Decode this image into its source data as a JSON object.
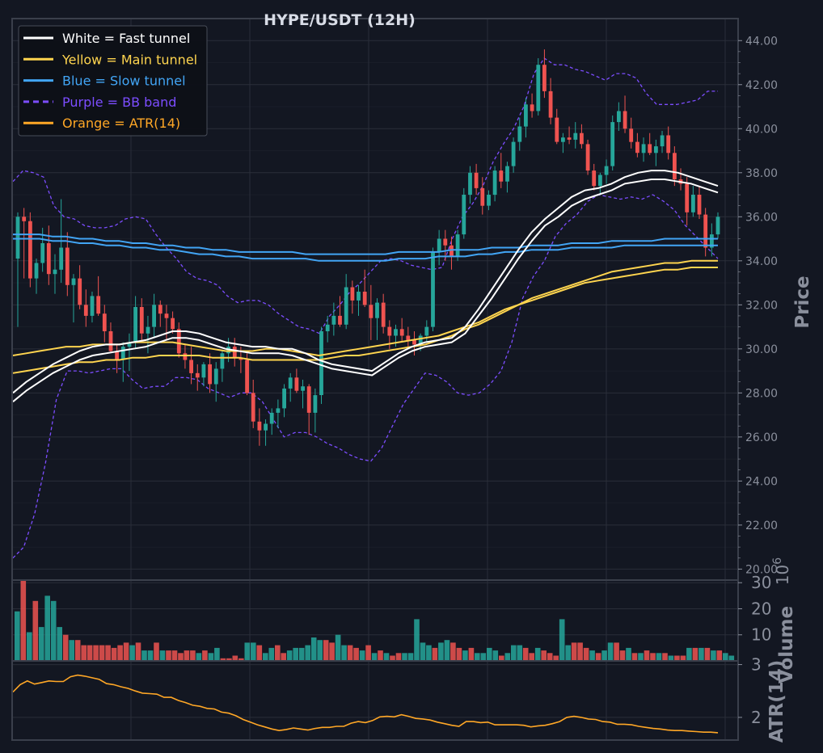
{
  "chart_data": {
    "type": "candlestick",
    "title": "HYPE/USDT (12H)",
    "colors": {
      "background": "#131722",
      "up": "#26a69a",
      "down": "#ef5350",
      "fast": "#ffffff",
      "main": "#ffd54f",
      "slow": "#42a5f5",
      "bb": "#7c4dff",
      "atr": "#ffa726",
      "grid": "#2a2e39",
      "text": "#8a8f9c"
    },
    "legend": {
      "position": "top-left",
      "entries": [
        {
          "label": "White = Fast tunnel",
          "color": "#ffffff",
          "dash": false
        },
        {
          "label": "Yellow = Main tunnel",
          "color": "#ffd54f",
          "dash": false
        },
        {
          "label": "Blue = Slow tunnel",
          "color": "#42a5f5",
          "dash": false
        },
        {
          "label": "Purple = BB band",
          "color": "#7c4dff",
          "dash": true
        },
        {
          "label": "Orange = ATR(14)",
          "color": "#ffa726",
          "dash": false
        }
      ]
    },
    "price_panel": {
      "ylabel": "Price",
      "ylim": [
        19.5,
        45.0
      ],
      "yticks": [
        "20.00",
        "22.00",
        "24.00",
        "26.00",
        "28.00",
        "30.00",
        "32.00",
        "34.00",
        "36.00",
        "38.00",
        "40.00",
        "42.00",
        "44.00"
      ],
      "grid": true
    },
    "volume_panel": {
      "ylabel": "Volume",
      "scale_label": "1e6",
      "ylim": [
        0,
        31
      ],
      "yticks": [
        "10",
        "20",
        "30"
      ],
      "grid": true
    },
    "atr_panel": {
      "ylabel": "ATR(14)",
      "ylim": [
        1.57,
        3.07
      ],
      "yticks": [
        "2",
        "3"
      ],
      "grid": true
    },
    "candles": [
      [
        34.1,
        36.2,
        31.0,
        36.0
      ],
      [
        36.0,
        36.4,
        33.2,
        35.8
      ],
      [
        35.8,
        36.2,
        32.8,
        33.2
      ],
      [
        33.2,
        34.1,
        32.5,
        33.9
      ],
      [
        33.9,
        35.5,
        33.5,
        34.8
      ],
      [
        34.8,
        35.6,
        32.9,
        33.4
      ],
      [
        33.4,
        34.3,
        32.5,
        33.6
      ],
      [
        33.6,
        36.8,
        33.0,
        34.6
      ],
      [
        34.6,
        35.3,
        32.4,
        32.9
      ],
      [
        32.9,
        33.4,
        31.2,
        33.2
      ],
      [
        33.2,
        33.8,
        31.8,
        32.0
      ],
      [
        32.0,
        32.7,
        31.0,
        31.5
      ],
      [
        31.5,
        32.6,
        31.2,
        32.4
      ],
      [
        32.4,
        33.3,
        31.5,
        31.6
      ],
      [
        31.6,
        32.0,
        30.3,
        30.8
      ],
      [
        30.8,
        31.2,
        29.8,
        29.9
      ],
      [
        29.9,
        30.2,
        28.9,
        29.5
      ],
      [
        29.5,
        30.3,
        28.5,
        30.1
      ],
      [
        30.1,
        30.7,
        29.0,
        30.3
      ],
      [
        30.3,
        32.4,
        30.0,
        31.9
      ],
      [
        31.9,
        32.3,
        30.3,
        30.7
      ],
      [
        30.7,
        31.5,
        29.8,
        31.0
      ],
      [
        31.0,
        32.5,
        30.5,
        32.0
      ],
      [
        32.0,
        32.2,
        31.0,
        31.6
      ],
      [
        31.6,
        32.0,
        30.4,
        31.4
      ],
      [
        31.4,
        31.7,
        30.7,
        30.9
      ],
      [
        30.9,
        31.2,
        29.6,
        29.8
      ],
      [
        29.8,
        30.2,
        29.1,
        29.5
      ],
      [
        29.5,
        30.1,
        28.4,
        28.9
      ],
      [
        28.9,
        29.3,
        28.1,
        28.7
      ],
      [
        28.7,
        29.4,
        28.3,
        29.3
      ],
      [
        29.3,
        29.8,
        28.0,
        28.4
      ],
      [
        28.4,
        29.4,
        27.6,
        29.1
      ],
      [
        29.1,
        29.9,
        28.5,
        29.8
      ],
      [
        29.8,
        30.5,
        29.4,
        30.1
      ],
      [
        30.1,
        30.5,
        29.2,
        29.6
      ],
      [
        29.6,
        30.1,
        28.9,
        29.5
      ],
      [
        29.5,
        29.8,
        27.9,
        28.0
      ],
      [
        28.0,
        28.6,
        26.4,
        26.7
      ],
      [
        26.7,
        27.3,
        25.6,
        26.3
      ],
      [
        26.3,
        26.8,
        25.6,
        26.6
      ],
      [
        26.6,
        27.3,
        26.1,
        27.1
      ],
      [
        27.1,
        27.7,
        26.4,
        27.3
      ],
      [
        27.3,
        28.4,
        26.9,
        28.2
      ],
      [
        28.2,
        28.9,
        27.6,
        28.7
      ],
      [
        28.7,
        29.1,
        28.0,
        28.1
      ],
      [
        28.1,
        28.6,
        27.3,
        28.3
      ],
      [
        28.3,
        28.4,
        26.1,
        27.1
      ],
      [
        27.1,
        28.2,
        26.2,
        27.9
      ],
      [
        27.9,
        31.0,
        27.5,
        30.8
      ],
      [
        30.8,
        31.5,
        30.3,
        31.1
      ],
      [
        31.1,
        32.1,
        30.6,
        31.5
      ],
      [
        31.5,
        32.4,
        31.0,
        31.1
      ],
      [
        31.1,
        33.4,
        30.9,
        32.8
      ],
      [
        32.8,
        33.1,
        31.6,
        32.2
      ],
      [
        32.2,
        32.9,
        31.5,
        32.6
      ],
      [
        32.6,
        33.6,
        31.9,
        32.0
      ],
      [
        32.0,
        32.9,
        30.4,
        31.4
      ],
      [
        31.4,
        32.3,
        30.4,
        32.1
      ],
      [
        32.1,
        32.5,
        30.7,
        31.0
      ],
      [
        31.0,
        31.3,
        30.0,
        30.6
      ],
      [
        30.6,
        31.1,
        30.1,
        30.9
      ],
      [
        30.9,
        31.4,
        30.3,
        30.6
      ],
      [
        30.6,
        31.0,
        30.1,
        30.4
      ],
      [
        30.4,
        30.8,
        29.7,
        30.2
      ],
      [
        30.2,
        30.7,
        29.9,
        30.6
      ],
      [
        30.6,
        31.3,
        30.3,
        31.0
      ],
      [
        31.0,
        34.6,
        30.8,
        34.4
      ],
      [
        34.4,
        35.4,
        33.8,
        35.0
      ],
      [
        35.0,
        35.4,
        34.0,
        34.7
      ],
      [
        34.7,
        35.1,
        33.6,
        34.2
      ],
      [
        34.2,
        35.4,
        34.0,
        35.2
      ],
      [
        35.2,
        37.3,
        35.0,
        37.0
      ],
      [
        37.0,
        38.3,
        36.6,
        38.0
      ],
      [
        38.0,
        38.4,
        37.0,
        37.3
      ],
      [
        37.3,
        37.8,
        36.1,
        36.5
      ],
      [
        36.5,
        37.2,
        36.3,
        37.0
      ],
      [
        37.0,
        38.3,
        36.7,
        38.1
      ],
      [
        38.1,
        38.9,
        37.3,
        37.6
      ],
      [
        37.6,
        38.5,
        37.1,
        38.3
      ],
      [
        38.3,
        39.6,
        38.0,
        39.4
      ],
      [
        39.4,
        40.5,
        39.0,
        40.1
      ],
      [
        40.1,
        41.4,
        39.6,
        41.1
      ],
      [
        41.1,
        41.6,
        40.5,
        40.8
      ],
      [
        40.8,
        43.2,
        40.6,
        42.9
      ],
      [
        42.9,
        43.6,
        41.4,
        41.7
      ],
      [
        41.7,
        42.3,
        40.2,
        40.5
      ],
      [
        40.5,
        40.9,
        39.3,
        39.4
      ],
      [
        39.4,
        39.8,
        38.9,
        39.6
      ],
      [
        39.6,
        40.1,
        39.3,
        39.5
      ],
      [
        39.5,
        40.3,
        39.1,
        39.8
      ],
      [
        39.8,
        40.2,
        39.1,
        39.3
      ],
      [
        39.3,
        39.5,
        37.9,
        38.1
      ],
      [
        38.1,
        38.4,
        37.2,
        37.4
      ],
      [
        37.4,
        38.0,
        37.0,
        37.9
      ],
      [
        37.9,
        38.6,
        37.5,
        38.3
      ],
      [
        38.3,
        40.6,
        38.1,
        40.3
      ],
      [
        40.3,
        41.2,
        39.9,
        40.8
      ],
      [
        40.8,
        41.5,
        39.8,
        40.0
      ],
      [
        40.0,
        40.5,
        39.1,
        39.4
      ],
      [
        39.4,
        39.8,
        38.7,
        38.9
      ],
      [
        38.9,
        39.6,
        38.5,
        39.3
      ],
      [
        39.3,
        39.8,
        38.8,
        38.9
      ],
      [
        38.9,
        39.5,
        38.3,
        39.2
      ],
      [
        39.2,
        39.9,
        38.9,
        39.7
      ],
      [
        39.7,
        40.1,
        38.6,
        38.9
      ],
      [
        38.9,
        39.2,
        37.4,
        37.7
      ],
      [
        37.7,
        38.2,
        37.2,
        37.5
      ],
      [
        37.5,
        37.8,
        35.6,
        36.2
      ],
      [
        36.2,
        37.4,
        36.0,
        37.0
      ],
      [
        37.0,
        37.4,
        35.9,
        36.1
      ],
      [
        36.1,
        36.4,
        34.2,
        34.6
      ],
      [
        34.6,
        35.7,
        34.2,
        35.2
      ],
      [
        35.2,
        36.2,
        35.0,
        36.0
      ]
    ],
    "fast_upper": [
      28.0,
      28.5,
      28.9,
      29.3,
      29.6,
      29.9,
      30.1,
      30.2,
      30.2,
      30.3,
      30.4,
      30.6,
      30.8,
      30.8,
      30.7,
      30.5,
      30.3,
      30.2,
      30.1,
      30.1,
      30.0,
      30.0,
      29.8,
      29.5,
      29.3,
      29.2,
      29.1,
      29.0,
      29.4,
      29.8,
      30.1,
      30.3,
      30.4,
      30.5,
      31.0,
      31.8,
      32.7,
      33.6,
      34.5,
      35.3,
      35.9,
      36.4,
      36.9,
      37.2,
      37.3,
      37.5,
      37.8,
      38.0,
      38.1,
      38.1,
      38.0,
      37.8,
      37.6,
      37.4
    ],
    "fast_lower": [
      27.6,
      28.1,
      28.5,
      28.9,
      29.2,
      29.5,
      29.7,
      29.8,
      29.9,
      30.0,
      30.1,
      30.3,
      30.5,
      30.5,
      30.4,
      30.2,
      30.0,
      29.9,
      29.8,
      29.8,
      29.8,
      29.7,
      29.5,
      29.3,
      29.1,
      29.0,
      28.9,
      28.8,
      29.2,
      29.6,
      29.9,
      30.1,
      30.2,
      30.3,
      30.7,
      31.5,
      32.3,
      33.2,
      34.1,
      34.9,
      35.6,
      36.0,
      36.5,
      36.8,
      37.0,
      37.2,
      37.5,
      37.6,
      37.7,
      37.7,
      37.6,
      37.5,
      37.3,
      37.1
    ],
    "main_upper": [
      29.7,
      29.8,
      29.9,
      30.0,
      30.1,
      30.1,
      30.2,
      30.2,
      30.2,
      30.3,
      30.3,
      30.3,
      30.3,
      30.2,
      30.1,
      30.0,
      29.9,
      29.9,
      29.9,
      30.0,
      30.0,
      29.9,
      29.8,
      29.7,
      29.8,
      29.9,
      30.0,
      30.1,
      30.2,
      30.3,
      30.4,
      30.5,
      30.6,
      30.8,
      31.0,
      31.2,
      31.5,
      31.8,
      32.0,
      32.3,
      32.5,
      32.7,
      32.9,
      33.1,
      33.3,
      33.5,
      33.6,
      33.7,
      33.8,
      33.9,
      33.9,
      34.0,
      34.0,
      34.0
    ],
    "main_lower": [
      28.9,
      29.0,
      29.1,
      29.2,
      29.3,
      29.4,
      29.4,
      29.5,
      29.5,
      29.6,
      29.6,
      29.7,
      29.7,
      29.7,
      29.7,
      29.6,
      29.6,
      29.6,
      29.5,
      29.5,
      29.5,
      29.5,
      29.5,
      29.5,
      29.6,
      29.7,
      29.7,
      29.8,
      29.9,
      30.0,
      30.1,
      30.2,
      30.4,
      30.6,
      30.9,
      31.1,
      31.4,
      31.7,
      32.0,
      32.2,
      32.4,
      32.6,
      32.8,
      33.0,
      33.1,
      33.2,
      33.3,
      33.4,
      33.5,
      33.6,
      33.6,
      33.7,
      33.7,
      33.7
    ],
    "slow_upper": [
      35.2,
      35.2,
      35.2,
      35.1,
      35.1,
      35.0,
      35.0,
      34.9,
      34.9,
      34.8,
      34.8,
      34.7,
      34.7,
      34.6,
      34.6,
      34.5,
      34.5,
      34.4,
      34.4,
      34.4,
      34.4,
      34.4,
      34.3,
      34.3,
      34.3,
      34.3,
      34.3,
      34.3,
      34.3,
      34.4,
      34.4,
      34.4,
      34.4,
      34.5,
      34.5,
      34.5,
      34.6,
      34.6,
      34.6,
      34.7,
      34.7,
      34.7,
      34.8,
      34.8,
      34.8,
      34.9,
      34.9,
      34.9,
      34.9,
      35.0,
      35.0,
      35.0,
      35.0,
      35.0
    ],
    "slow_lower": [
      35.0,
      35.0,
      35.0,
      34.9,
      34.9,
      34.8,
      34.8,
      34.7,
      34.7,
      34.6,
      34.6,
      34.5,
      34.5,
      34.4,
      34.3,
      34.3,
      34.2,
      34.2,
      34.1,
      34.1,
      34.1,
      34.1,
      34.1,
      34.0,
      34.0,
      34.0,
      34.0,
      34.0,
      34.0,
      34.1,
      34.1,
      34.1,
      34.2,
      34.2,
      34.2,
      34.3,
      34.3,
      34.4,
      34.4,
      34.5,
      34.5,
      34.5,
      34.6,
      34.6,
      34.6,
      34.6,
      34.7,
      34.7,
      34.7,
      34.7,
      34.7,
      34.7,
      34.7,
      34.7
    ],
    "bb_upper": [
      37.6,
      38.1,
      38.0,
      37.8,
      36.5,
      36.0,
      35.9,
      35.6,
      35.5,
      35.5,
      35.6,
      35.9,
      36.0,
      35.9,
      35.2,
      34.6,
      34.1,
      33.5,
      33.2,
      33.1,
      32.9,
      32.4,
      32.1,
      32.2,
      32.2,
      32.0,
      31.6,
      31.3,
      31.0,
      30.9,
      30.7,
      31.5,
      32.0,
      32.6,
      33.0,
      33.5,
      34.0,
      34.1,
      34.0,
      33.8,
      33.7,
      33.6,
      33.7,
      35.0,
      36.0,
      36.6,
      37.4,
      38.5,
      39.3,
      40.0,
      41.0,
      42.5,
      43.2,
      42.9,
      42.9,
      42.7,
      42.6,
      42.4,
      42.2,
      42.5,
      42.5,
      42.3,
      41.6,
      41.1,
      41.1,
      41.1,
      41.2,
      41.3,
      41.7,
      41.7
    ],
    "bb_lower": [
      20.5,
      21.0,
      22.5,
      24.8,
      27.7,
      29.0,
      29.0,
      28.9,
      29.0,
      29.1,
      29.1,
      28.6,
      28.2,
      28.3,
      28.3,
      28.7,
      28.7,
      28.6,
      28.2,
      28.0,
      27.8,
      28.0,
      28.0,
      27.6,
      26.8,
      26.0,
      26.2,
      26.2,
      26.0,
      25.7,
      25.5,
      25.2,
      25.0,
      24.9,
      25.5,
      26.5,
      27.5,
      28.2,
      28.9,
      28.8,
      28.5,
      28.0,
      27.9,
      28.0,
      28.4,
      29.0,
      30.3,
      32.3,
      33.3,
      34.0,
      35.1,
      35.7,
      36.1,
      36.7,
      37.0,
      36.9,
      36.8,
      36.9,
      36.8,
      37.0,
      36.7,
      36.3,
      35.6,
      35.1,
      34.6,
      34.1
    ],
    "volume": [
      19,
      31,
      11,
      23,
      13,
      25,
      23,
      13,
      10,
      8,
      8,
      6,
      6,
      6,
      6,
      6,
      5,
      6,
      7,
      6,
      7,
      4,
      4,
      7,
      4,
      4,
      4,
      3,
      4,
      4,
      3,
      4,
      3,
      5,
      1,
      1,
      2,
      1,
      7,
      7,
      6,
      3,
      5,
      6,
      3,
      4,
      5,
      5,
      6,
      9,
      8,
      8,
      7,
      10,
      6,
      6,
      5,
      4,
      6,
      3,
      4,
      3,
      2,
      3,
      3,
      3,
      16,
      7,
      6,
      5,
      7,
      8,
      7,
      5,
      4,
      5,
      3,
      3,
      5,
      4,
      2,
      3,
      6,
      6,
      5,
      3,
      5,
      4,
      3,
      2,
      16,
      6,
      7,
      7,
      5,
      4,
      3,
      4,
      7,
      7,
      4,
      5,
      3,
      3,
      4,
      3,
      3,
      3,
      2,
      2,
      2,
      5,
      5,
      5,
      5,
      4,
      4,
      3,
      2
    ],
    "volume_up": [
      1,
      0,
      1,
      0,
      1,
      1,
      1,
      1,
      0,
      1,
      0,
      0,
      0,
      0,
      0,
      0,
      0,
      0,
      0,
      1,
      0,
      1,
      1,
      0,
      1,
      0,
      0,
      0,
      0,
      0,
      1,
      0,
      1,
      1,
      0,
      0,
      0,
      0,
      1,
      1,
      0,
      1,
      1,
      0,
      0,
      1,
      1,
      1,
      1,
      1,
      1,
      0,
      0,
      1,
      1,
      0,
      0,
      1,
      0,
      1,
      0,
      1,
      0,
      0,
      1,
      1,
      1,
      1,
      1,
      0,
      1,
      1,
      0,
      0,
      1,
      0,
      1,
      1,
      1,
      1,
      0,
      1,
      1,
      1,
      0,
      0,
      1,
      0,
      0,
      0,
      1,
      1,
      0,
      0,
      0,
      1,
      0,
      1,
      1,
      0,
      0,
      1,
      0,
      1,
      0,
      0,
      1,
      0,
      1,
      0,
      0,
      1,
      0,
      1,
      0,
      1,
      0,
      1,
      1
    ],
    "atr": [
      2.48,
      2.62,
      2.69,
      2.63,
      2.66,
      2.69,
      2.68,
      2.68,
      2.77,
      2.8,
      2.78,
      2.75,
      2.72,
      2.64,
      2.62,
      2.58,
      2.55,
      2.5,
      2.46,
      2.45,
      2.44,
      2.38,
      2.38,
      2.32,
      2.28,
      2.23,
      2.21,
      2.17,
      2.16,
      2.1,
      2.08,
      2.03,
      1.96,
      1.91,
      1.86,
      1.82,
      1.78,
      1.75,
      1.77,
      1.8,
      1.78,
      1.76,
      1.79,
      1.81,
      1.81,
      1.83,
      1.83,
      1.89,
      1.92,
      1.9,
      1.94,
      2.01,
      2.02,
      2.01,
      2.05,
      2.02,
      1.98,
      1.97,
      1.95,
      1.91,
      1.88,
      1.85,
      1.83,
      1.92,
      1.92,
      1.9,
      1.91,
      1.86,
      1.86,
      1.86,
      1.86,
      1.85,
      1.82,
      1.84,
      1.85,
      1.88,
      1.92,
      2.0,
      2.02,
      2.0,
      1.97,
      1.96,
      1.92,
      1.91,
      1.87,
      1.87,
      1.86,
      1.83,
      1.81,
      1.79,
      1.78,
      1.76,
      1.75,
      1.75,
      1.74,
      1.73,
      1.72,
      1.72,
      1.71
    ]
  }
}
